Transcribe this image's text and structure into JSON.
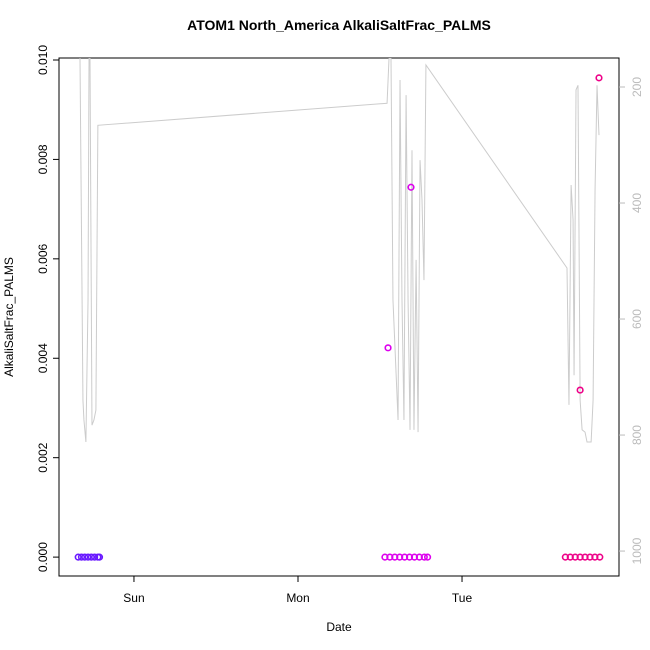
{
  "chart_data": {
    "type": "scatter",
    "title": "ATOM1 North_America AlkaliSaltFrac_PALMS",
    "x_label": "Date",
    "y_label": "AlkaliSaltFrac_PALMS",
    "xlim": [
      -0.457,
      2.957
    ],
    "xticks": [
      {
        "value": 0,
        "label": "Sun"
      },
      {
        "value": 1,
        "label": "Mon"
      },
      {
        "value": 2,
        "label": "Tue"
      }
    ],
    "ylim": [
      -0.00038,
      0.01004
    ],
    "yticks": [
      {
        "value": 0,
        "label": "0.000"
      },
      {
        "value": 0.002,
        "label": "0.002"
      },
      {
        "value": 0.004,
        "label": "0.004"
      },
      {
        "value": 0.006,
        "label": "0.006"
      },
      {
        "value": 0.008,
        "label": "0.008"
      },
      {
        "value": 0.01,
        "label": "0.010"
      }
    ],
    "y2lim": [
      1043,
      150
    ],
    "y2ticks": [
      200,
      400,
      600,
      800,
      1000
    ],
    "series": [
      {
        "color": "#cccccc",
        "axis": "y2",
        "line": true,
        "x": [
          -0.329,
          -0.311,
          -0.305,
          -0.293,
          -0.28,
          -0.274,
          -0.268,
          -0.256,
          -0.244,
          -0.232,
          -0.22,
          1.543,
          1.555,
          1.567,
          1.579,
          1.61,
          1.622,
          1.634,
          1.646,
          1.659,
          1.671,
          1.683,
          1.695,
          1.707,
          1.72,
          1.732,
          1.744,
          1.756,
          1.768,
          1.78,
          2.64,
          2.652,
          2.665,
          2.677,
          2.683,
          2.695,
          2.707,
          2.72,
          2.732,
          2.75,
          2.762,
          2.787,
          2.799,
          2.811,
          2.823,
          2.835
        ],
        "values": [
          150,
          740,
          774,
          812,
          567,
          150,
          150,
          783,
          774,
          757,
          266,
          228,
          150,
          150,
          567,
          774,
          188,
          567,
          774,
          214,
          567,
          791,
          309,
          791,
          498,
          795,
          326,
          395,
          533,
          162,
          512,
          748,
          369,
          429,
          697,
          205,
          197,
          740,
          791,
          795,
          812,
          812,
          740,
          378,
          197,
          283
        ]
      },
      {
        "color": "#6a1aff",
        "x": [
          -0.34,
          -0.32,
          -0.3,
          -0.28,
          -0.26,
          -0.24,
          -0.22,
          -0.21
        ],
        "values": [
          0,
          0,
          0,
          0,
          0,
          0,
          0,
          0
        ]
      },
      {
        "color": "#dd00ee",
        "x": [
          1.53,
          1.56,
          1.59,
          1.62,
          1.65,
          1.68,
          1.71,
          1.74,
          1.77,
          1.79,
          1.549,
          1.689
        ],
        "values": [
          0,
          0,
          0,
          0,
          0,
          0,
          0,
          0,
          0,
          0,
          0.00421,
          0.00744
        ]
      },
      {
        "color": "#ee0088",
        "x": [
          2.63,
          2.66,
          2.69,
          2.72,
          2.75,
          2.78,
          2.81,
          2.84,
          2.72,
          2.835
        ],
        "values": [
          0,
          0,
          0,
          0,
          0,
          0,
          0,
          0,
          0.00336,
          0.00964
        ]
      }
    ]
  }
}
